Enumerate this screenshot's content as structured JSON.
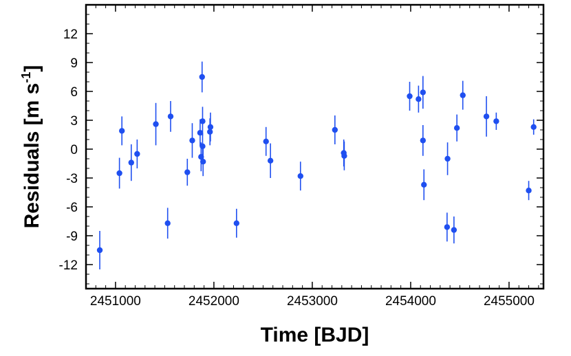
{
  "chart_data": {
    "type": "scatter",
    "title": "",
    "xlabel": "Time [BJD]",
    "ylabel_main": "Residuals [m s",
    "ylabel_sup": "-1",
    "ylabel_close": "]",
    "xlim": [
      2450700,
      2455350
    ],
    "ylim": [
      -14.5,
      15
    ],
    "xticks": [
      2451000,
      2452000,
      2453000,
      2454000,
      2455000
    ],
    "yticks": [
      12,
      9,
      6,
      3,
      0,
      -3,
      -6,
      -9,
      -12
    ],
    "x_tick_labels": [
      "2451000",
      "2452000",
      "2453000",
      "2454000",
      "2455000"
    ],
    "y_tick_labels": [
      "12",
      "9",
      "6",
      "3",
      "0",
      "-3",
      "-6",
      "-9",
      "-12"
    ],
    "grid": false,
    "marker_color": "#1f4ff0",
    "series": [
      {
        "points": [
          {
            "x": 2450840,
            "y": -10.5,
            "err": 2.0
          },
          {
            "x": 2451040,
            "y": -2.5,
            "err": 1.6
          },
          {
            "x": 2451065,
            "y": 1.9,
            "err": 1.5
          },
          {
            "x": 2451160,
            "y": -1.4,
            "err": 1.9
          },
          {
            "x": 2451220,
            "y": -0.5,
            "err": 1.5
          },
          {
            "x": 2451410,
            "y": 2.6,
            "err": 2.2
          },
          {
            "x": 2451530,
            "y": -7.7,
            "err": 1.6
          },
          {
            "x": 2451560,
            "y": 3.4,
            "err": 1.6
          },
          {
            "x": 2451730,
            "y": -2.4,
            "err": 1.4
          },
          {
            "x": 2451780,
            "y": 0.9,
            "err": 1.8
          },
          {
            "x": 2451860,
            "y": 1.7,
            "err": 1.4
          },
          {
            "x": 2451870,
            "y": -0.8,
            "err": 1.5
          },
          {
            "x": 2451880,
            "y": 7.5,
            "err": 1.6
          },
          {
            "x": 2451885,
            "y": 2.9,
            "err": 1.5
          },
          {
            "x": 2451885,
            "y": 0.3,
            "err": 1.4
          },
          {
            "x": 2451890,
            "y": -1.3,
            "err": 1.5
          },
          {
            "x": 2451960,
            "y": 1.8,
            "err": 1.4
          },
          {
            "x": 2451965,
            "y": 2.3,
            "err": 1.5
          },
          {
            "x": 2452230,
            "y": -7.7,
            "err": 1.5
          },
          {
            "x": 2452530,
            "y": 0.8,
            "err": 1.5
          },
          {
            "x": 2452575,
            "y": -1.2,
            "err": 1.8
          },
          {
            "x": 2452880,
            "y": -2.8,
            "err": 1.5
          },
          {
            "x": 2453230,
            "y": 2.0,
            "err": 1.5
          },
          {
            "x": 2453320,
            "y": -0.4,
            "err": 1.4
          },
          {
            "x": 2453325,
            "y": -0.7,
            "err": 1.5
          },
          {
            "x": 2453990,
            "y": 5.5,
            "err": 1.5
          },
          {
            "x": 2454080,
            "y": 5.2,
            "err": 1.4
          },
          {
            "x": 2454125,
            "y": 5.9,
            "err": 1.7
          },
          {
            "x": 2454125,
            "y": 0.9,
            "err": 1.6
          },
          {
            "x": 2454135,
            "y": -3.7,
            "err": 1.6
          },
          {
            "x": 2454370,
            "y": -8.1,
            "err": 1.5
          },
          {
            "x": 2454375,
            "y": -1.0,
            "err": 1.7
          },
          {
            "x": 2454440,
            "y": -8.4,
            "err": 1.4
          },
          {
            "x": 2454470,
            "y": 2.2,
            "err": 1.4
          },
          {
            "x": 2454530,
            "y": 5.6,
            "err": 1.5
          },
          {
            "x": 2454770,
            "y": 3.4,
            "err": 2.1
          },
          {
            "x": 2454870,
            "y": 2.9,
            "err": 0.9
          },
          {
            "x": 2455200,
            "y": -4.3,
            "err": 1.0
          },
          {
            "x": 2455250,
            "y": 2.3,
            "err": 0.8
          }
        ]
      }
    ]
  }
}
